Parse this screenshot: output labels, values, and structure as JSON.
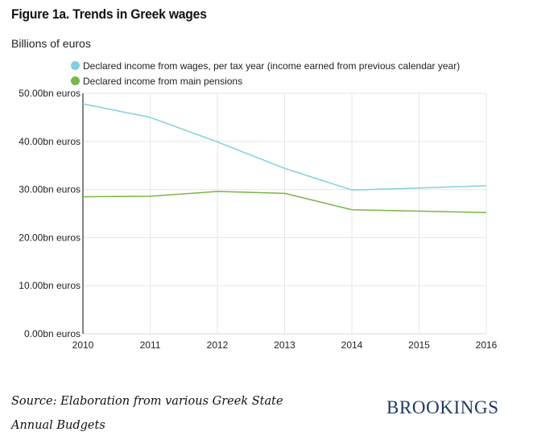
{
  "title": "Figure 1a. Trends in Greek wages",
  "unit_label": "Billions of euros",
  "source": "Source: Elaboration from various Greek State Annual Budgets",
  "brand": "BROOKINGS",
  "chart_data": {
    "type": "line",
    "title": "Figure 1a. Trends in Greek wages",
    "ylabel": "Billions of euros",
    "xlabel": "",
    "x": [
      2010,
      2011,
      2012,
      2013,
      2014,
      2015,
      2016
    ],
    "ylim": [
      0,
      50
    ],
    "yticks": [
      0,
      10,
      20,
      30,
      40,
      50
    ],
    "ytick_labels": [
      "0.00bn euros",
      "10.00bn euros",
      "20.00bn euros",
      "30.00bn euros",
      "40.00bn euros",
      "50.00bn euros"
    ],
    "grid": true,
    "legend_position": "top-left",
    "series": [
      {
        "name": "Declared income from wages, per tax year (income earned from previous calendar year)",
        "color": "#7fd0e0",
        "values": [
          47.8,
          45.0,
          39.9,
          34.4,
          29.9,
          30.3,
          30.8
        ]
      },
      {
        "name": "Declared income from main pensions",
        "color": "#7ab648",
        "values": [
          28.5,
          28.6,
          29.6,
          29.2,
          25.8,
          25.5,
          25.2
        ]
      }
    ]
  }
}
